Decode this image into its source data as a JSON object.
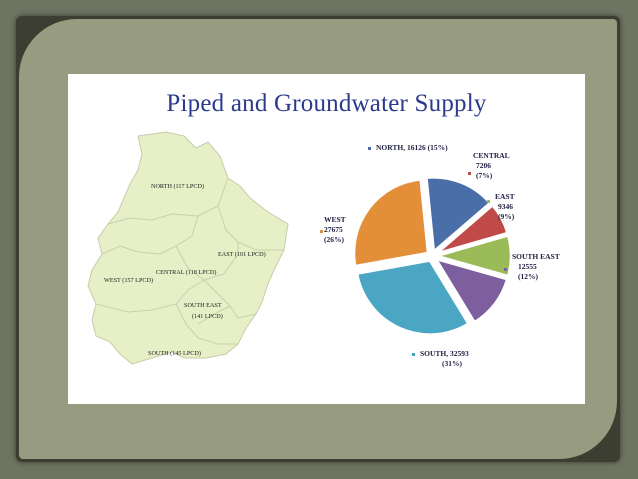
{
  "chart_data": {
    "type": "pie",
    "title": "Piped and Groundwater Supply",
    "slices": [
      {
        "name": "NORTH",
        "value": 16126,
        "percent": "15%",
        "color": "#4a6ea8",
        "label_lines": [
          "NORTH, 16126 (15%)"
        ]
      },
      {
        "name": "CENTRAL",
        "value": 7206,
        "percent": "7%",
        "color": "#bf4a47",
        "label_lines": [
          "CENTRAL",
          "7206",
          "(7%)"
        ]
      },
      {
        "name": "EAST",
        "value": 9346,
        "percent": "9%",
        "color": "#9bbb59",
        "label_lines": [
          "EAST",
          "9346",
          "(9%)"
        ]
      },
      {
        "name": "SOUTH EAST",
        "value": 12555,
        "percent": "12%",
        "color": "#7d5e9e",
        "label_lines": [
          "SOUTH EAST",
          "12555",
          "(12%)"
        ]
      },
      {
        "name": "SOUTH",
        "value": 32593,
        "percent": "31%",
        "color": "#4ba6c3",
        "label_lines": [
          "SOUTH, 32593",
          "(31%)"
        ]
      },
      {
        "name": "WEST",
        "value": 27675,
        "percent": "26%",
        "color": "#e38f3a",
        "label_lines": [
          "WEST",
          "27675",
          "(26%)"
        ]
      }
    ]
  },
  "map": {
    "fill": "#e6efc6",
    "stroke": "#c0c9a0",
    "zones": [
      {
        "key": "north",
        "label": "NORTH (117 LPCD)"
      },
      {
        "key": "east",
        "label": "EAST (101 LPCD)"
      },
      {
        "key": "central",
        "label": "CENTRAL (118 LPCD)"
      },
      {
        "key": "west",
        "label": "WEST (157 LPCD)"
      },
      {
        "key": "southeast1",
        "label": "SOUTH EAST"
      },
      {
        "key": "southeast2",
        "label": "(141 LPCD)"
      },
      {
        "key": "south",
        "label": "SOUTH (145 LPCD)"
      }
    ]
  }
}
